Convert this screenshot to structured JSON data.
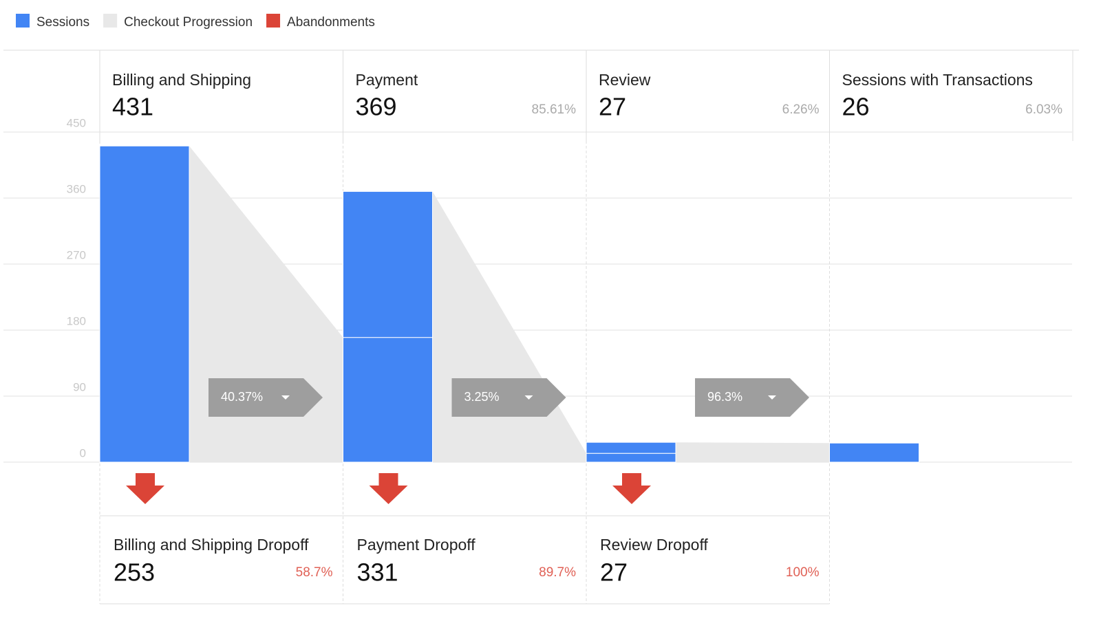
{
  "chart_data": {
    "type": "funnel",
    "legend": [
      {
        "name": "Sessions",
        "color": "#4285f4"
      },
      {
        "name": "Checkout Progression",
        "color": "#e8e8e8"
      },
      {
        "name": "Abandonments",
        "color": "#db4437"
      }
    ],
    "ylim": [
      0,
      450
    ],
    "yticks": [
      0,
      90,
      180,
      270,
      360,
      450
    ],
    "steps": [
      {
        "name": "Billing and Shipping",
        "sessions": 431,
        "segments": [
          431
        ],
        "progression": 40.37,
        "progression_label": "40.37%",
        "dropoff_name": "Billing and Shipping Dropoff",
        "dropoff": 253,
        "dropoff_rate": 58.7,
        "dropoff_rate_label": "58.7%"
      },
      {
        "name": "Payment",
        "sessions": 369,
        "rate": 85.61,
        "rate_label": "85.61%",
        "segments": [
          170,
          199
        ],
        "progression": 3.25,
        "progression_label": "3.25%",
        "dropoff_name": "Payment Dropoff",
        "dropoff": 331,
        "dropoff_rate": 89.7,
        "dropoff_rate_label": "89.7%"
      },
      {
        "name": "Review",
        "sessions": 27,
        "rate": 6.26,
        "rate_label": "6.26%",
        "segments": [
          12,
          15
        ],
        "progression": 96.3,
        "progression_label": "96.3%",
        "dropoff_name": "Review Dropoff",
        "dropoff": 27,
        "dropoff_rate": 100,
        "dropoff_rate_label": "100%"
      },
      {
        "name": "Sessions with Transactions",
        "sessions": 26,
        "rate": 6.03,
        "rate_label": "6.03%",
        "segments": [
          26
        ]
      }
    ]
  }
}
